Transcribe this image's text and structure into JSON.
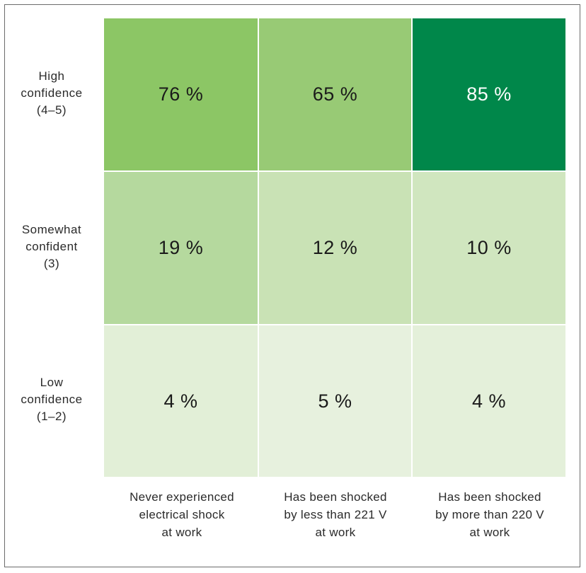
{
  "chart_data": {
    "type": "heatmap",
    "title": "",
    "columns": [
      "Never experienced\nelectrical shock\nat work",
      "Has been shocked\nby less than 221 V\nat work",
      "Has been shocked\nby more than 220 V\nat work"
    ],
    "rows": [
      "High\nconfidence\n(4–5)",
      "Somewhat\nconfident\n(3)",
      "Low\nconfidence\n(1–2)"
    ],
    "values": [
      [
        76,
        65,
        85
      ],
      [
        19,
        12,
        10
      ],
      [
        4,
        5,
        4
      ]
    ],
    "labels": [
      [
        "76 %",
        "65 %",
        "85 %"
      ],
      [
        "19 %",
        "12 %",
        "10 %"
      ],
      [
        "4 %",
        "5 %",
        "4 %"
      ]
    ],
    "unit": "%",
    "colors": [
      [
        "#8cc665",
        "#98ca75",
        "#00874a"
      ],
      [
        "#b5d99e",
        "#c9e2b5",
        "#d0e6bf"
      ],
      [
        "#e2efd7",
        "#e7f1de",
        "#e4f0da"
      ]
    ],
    "label_colors": [
      [
        "#1a1a1a",
        "#1a1a1a",
        "#ffffff"
      ],
      [
        "#1a1a1a",
        "#1a1a1a",
        "#1a1a1a"
      ],
      [
        "#1a1a1a",
        "#1a1a1a",
        "#1a1a1a"
      ]
    ],
    "grid_color": "#ffffff",
    "frame_color": "#6b6b6b"
  }
}
